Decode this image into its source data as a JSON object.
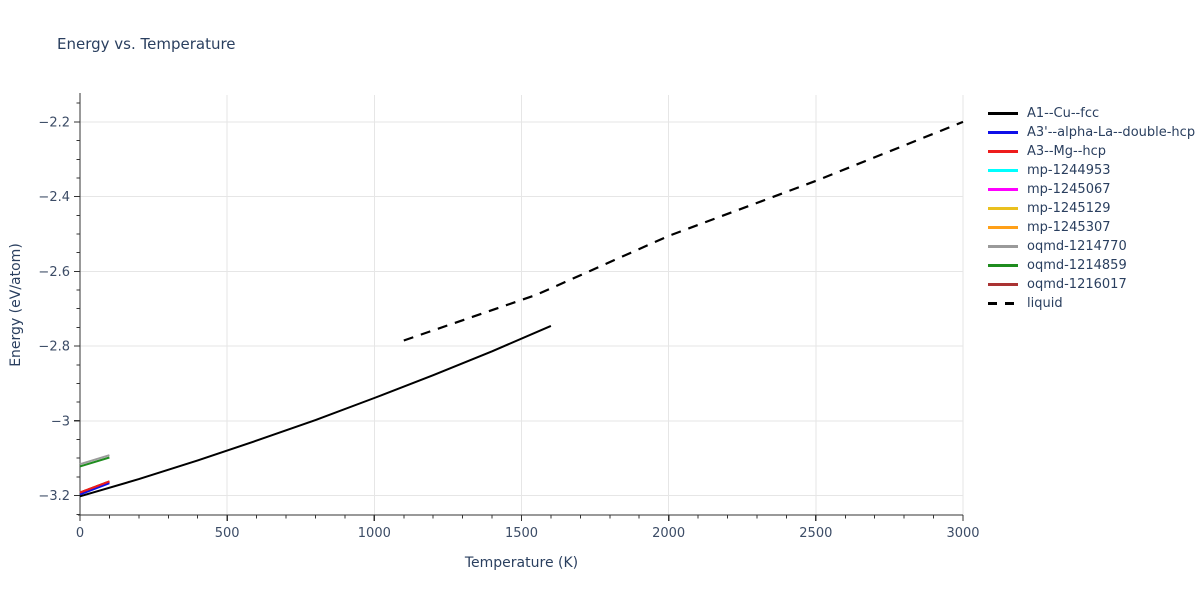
{
  "chart_data": {
    "type": "line",
    "title": "Energy vs. Temperature",
    "xlabel": "Temperature (K)",
    "ylabel": "Energy (eV/atom)",
    "xlim": [
      0,
      3000
    ],
    "ylim": [
      -3.252,
      -2.128
    ],
    "grid": true,
    "legend_position": "right-outside",
    "x_ticks": {
      "major": [
        0,
        500,
        1000,
        1500,
        2000,
        2500,
        3000
      ],
      "labels": [
        "0",
        "500",
        "1000",
        "1500",
        "2000",
        "2500",
        "3000"
      ],
      "minor_step": 100
    },
    "y_ticks": {
      "major": [
        -3.2,
        -3.0,
        -2.8,
        -2.6,
        -2.4,
        -2.2
      ],
      "labels": [
        "−3.2",
        "−3",
        "−2.8",
        "−2.6",
        "−2.4",
        "−2.2"
      ],
      "minor_step": 0.05
    },
    "series": [
      {
        "name": "A1--Cu--fcc",
        "color": "#000000",
        "style": "solid",
        "points": [
          [
            0,
            -3.202
          ],
          [
            200,
            -3.156
          ],
          [
            400,
            -3.106
          ],
          [
            600,
            -3.053
          ],
          [
            800,
            -2.998
          ],
          [
            1000,
            -2.939
          ],
          [
            1200,
            -2.878
          ],
          [
            1400,
            -2.814
          ],
          [
            1600,
            -2.746
          ]
        ]
      },
      {
        "name": "A3'--alpha-La--double-hcp",
        "color": "#0f0fe8",
        "style": "solid",
        "points": [
          [
            0,
            -3.197
          ],
          [
            100,
            -3.167
          ]
        ]
      },
      {
        "name": "A3--Mg--hcp",
        "color": "#ee1c1c",
        "style": "solid",
        "points": [
          [
            0,
            -3.192
          ],
          [
            100,
            -3.162
          ]
        ]
      },
      {
        "name": "mp-1244953",
        "color": "#00ffff",
        "style": "solid",
        "points": [
          [
            0,
            -3.192
          ],
          [
            100,
            -3.162
          ]
        ]
      },
      {
        "name": "mp-1245067",
        "color": "#ff00ff",
        "style": "solid",
        "points": [
          [
            0,
            -3.192
          ],
          [
            100,
            -3.162
          ]
        ]
      },
      {
        "name": "mp-1245129",
        "color": "#eac01e",
        "style": "solid",
        "points": [
          [
            0,
            -3.192
          ],
          [
            100,
            -3.162
          ]
        ]
      },
      {
        "name": "mp-1245307",
        "color": "#ffa018",
        "style": "solid",
        "points": [
          [
            0,
            -3.192
          ],
          [
            100,
            -3.162
          ]
        ]
      },
      {
        "name": "oqmd-1214770",
        "color": "#9a9a9a",
        "style": "solid",
        "points": [
          [
            0,
            -3.116
          ],
          [
            100,
            -3.092
          ]
        ]
      },
      {
        "name": "oqmd-1214859",
        "color": "#1f8c1f",
        "style": "solid",
        "points": [
          [
            0,
            -3.122
          ],
          [
            100,
            -3.098
          ]
        ]
      },
      {
        "name": "oqmd-1216017",
        "color": "#aa3333",
        "style": "solid",
        "points": [
          [
            0,
            -3.192
          ],
          [
            100,
            -3.162
          ]
        ]
      },
      {
        "name": "liquid",
        "color": "#000000",
        "style": "dashed",
        "points": [
          [
            1100,
            -2.785
          ],
          [
            1550,
            -2.663
          ],
          [
            2000,
            -2.505
          ],
          [
            2500,
            -2.358
          ],
          [
            3000,
            -2.2
          ]
        ]
      }
    ],
    "colors": {
      "title_text": "#2a3f5f",
      "tick_text": "#3c4c66",
      "axis_line": "#333333",
      "gridline": "#e6e6e6",
      "background": "#ffffff"
    }
  }
}
